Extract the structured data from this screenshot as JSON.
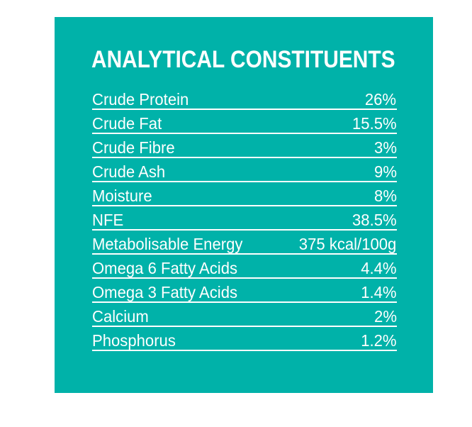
{
  "panel": {
    "title": "ANALYTICAL CONSTITUENTS",
    "background_color": "#00B2A9",
    "text_color": "#FFFFFF"
  },
  "table": {
    "rows": [
      {
        "label": "Crude Protein",
        "value": "26%"
      },
      {
        "label": "Crude Fat",
        "value": "15.5%"
      },
      {
        "label": "Crude Fibre",
        "value": "3%"
      },
      {
        "label": "Crude Ash",
        "value": "9%"
      },
      {
        "label": "Moisture",
        "value": "8%"
      },
      {
        "label": "NFE",
        "value": "38.5%"
      },
      {
        "label": "Metabolisable Energy",
        "value": "375 kcal/100g"
      },
      {
        "label": "Omega 6 Fatty Acids",
        "value": "4.4%"
      },
      {
        "label": "Omega 3 Fatty Acids",
        "value": "1.4%"
      },
      {
        "label": "Calcium",
        "value": "2%"
      },
      {
        "label": "Phosphorus",
        "value": "1.2%"
      }
    ]
  }
}
